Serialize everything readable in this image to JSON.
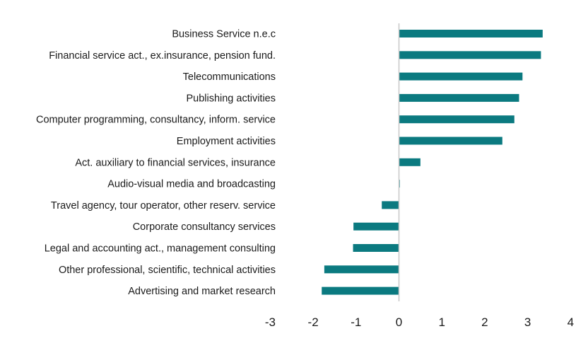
{
  "chart_data": {
    "type": "bar",
    "orientation": "horizontal",
    "title": "",
    "xlabel": "",
    "ylabel": "",
    "categories": [
      "Business Service n.e.c",
      "Financial service act., ex.insurance, pension fund.",
      "Telecommunications",
      "Publishing activities",
      "Computer programming, consultancy, inform. service",
      "Employment activities",
      "Act. auxiliary to financial services, insurance",
      "Audio-visual media and broadcasting",
      "Travel agency, tour operator, other reserv. service",
      "Corporate consultancy services",
      "Legal and accounting act., management consulting",
      "Other professional, scientific, technical activities",
      "Advertising and market research"
    ],
    "values": [
      3.35,
      3.31,
      2.88,
      2.8,
      2.69,
      2.41,
      0.5,
      0.02,
      -0.4,
      -1.06,
      -1.07,
      -1.74,
      -1.8
    ],
    "xlim": [
      -3,
      4
    ],
    "xticks": [
      -3,
      -2,
      -1,
      0,
      1,
      2,
      3,
      4
    ],
    "xtick_labels": [
      "-3",
      "-2",
      "-1",
      "0",
      "1",
      "2",
      "3",
      "4"
    ],
    "grid": false,
    "legend": "none",
    "colors": {
      "bar": "#0b7a80",
      "axis": "#c8c8c8",
      "text": "#1a1a1a"
    }
  }
}
